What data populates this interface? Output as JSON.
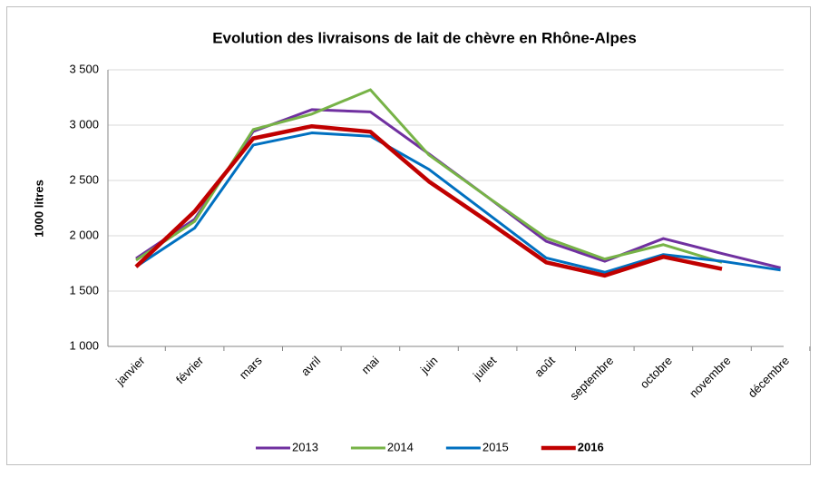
{
  "chart_data": {
    "type": "line",
    "title": "Evolution des livraisons de lait de chèvre en Rhône-Alpes",
    "y_label": "1000 litres",
    "categories": [
      "janvier",
      "février",
      "mars",
      "avril",
      "mai",
      "juin",
      "juillet",
      "août",
      "septembre",
      "octobre",
      "novembre",
      "décembre"
    ],
    "series": [
      {
        "name": "2013",
        "color": "#7030a0",
        "line_width": 3,
        "bold": false,
        "values": [
          1795,
          2150,
          2943,
          3140,
          3120,
          2740,
          2350,
          1950,
          1770,
          1975,
          1840,
          1710
        ]
      },
      {
        "name": "2014",
        "color": "#77b347",
        "line_width": 3,
        "bold": false,
        "values": [
          1780,
          2130,
          2960,
          3100,
          3320,
          2730,
          2350,
          1980,
          1790,
          1920,
          1760,
          null
        ]
      },
      {
        "name": "2015",
        "color": "#0070c0",
        "line_width": 3,
        "bold": false,
        "values": [
          1720,
          2070,
          2820,
          2930,
          2900,
          2600,
          2200,
          1800,
          1670,
          1830,
          1770,
          1690
        ]
      },
      {
        "name": "2016",
        "color": "#c00000",
        "line_width": 4.5,
        "bold": true,
        "values": [
          1720,
          2220,
          2880,
          2990,
          2940,
          2490,
          2130,
          1760,
          1640,
          1810,
          1700,
          null
        ]
      }
    ],
    "ylim": [
      1000,
      3500
    ],
    "yticks": [
      {
        "value": 1000,
        "label": "1 000"
      },
      {
        "value": 1500,
        "label": "1 500"
      },
      {
        "value": 2000,
        "label": "2 000"
      },
      {
        "value": 2500,
        "label": "2 500"
      },
      {
        "value": 3000,
        "label": "3 000"
      },
      {
        "value": 3500,
        "label": "3 500"
      }
    ],
    "grid": true,
    "legend": "bottom"
  }
}
